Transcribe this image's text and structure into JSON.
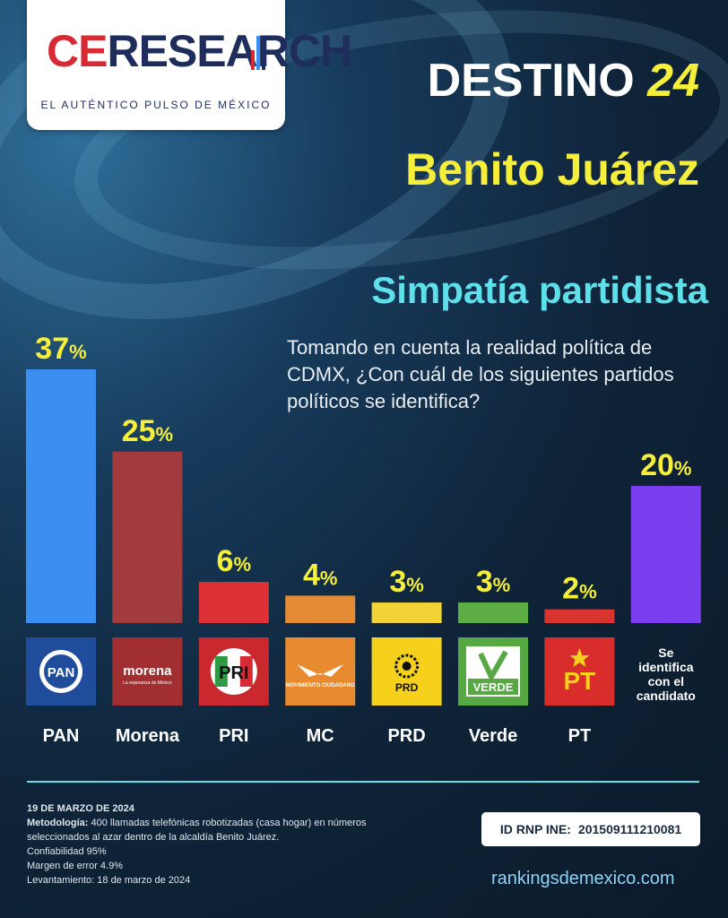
{
  "brand": {
    "logo_ce": "CE",
    "logo_rest": "RESEARCH",
    "tagline": "EL AUTÉNTICO PULSO DE MÉXICO"
  },
  "header": {
    "destino": "DESTINO",
    "year": "24",
    "place": "Benito Juárez"
  },
  "subtitle": "Simpatía partidista",
  "question": "Tomando en cuenta la realidad política de CDMX, ¿Con cuál de los siguientes partidos políticos se identifica?",
  "chart_data": {
    "type": "bar",
    "categories": [
      "PAN",
      "Morena",
      "PRI",
      "MC",
      "PRD",
      "Verde",
      "PT",
      "Se identifica con el candidato"
    ],
    "values": [
      37,
      25,
      6,
      4,
      3,
      3,
      2,
      20
    ],
    "value_suffix": "%",
    "colors": [
      "#3b8ff0",
      "#a23b3d",
      "#dc3237",
      "#e28b34",
      "#f2d235",
      "#5dad45",
      "#da3431",
      "#7c3ff0"
    ],
    "logos": [
      {
        "icon": "pan-logo-icon",
        "text": "PAN",
        "bg": "#1f4d9b"
      },
      {
        "icon": "morena-logo-icon",
        "text": "morena",
        "subtext": "La esperanza de México",
        "bg": "#a12f31"
      },
      {
        "icon": "pri-logo-icon",
        "text": "PRI",
        "bg": "#c9292e"
      },
      {
        "icon": "mc-logo-icon",
        "text": "MOVIMIENTO CIUDADANO",
        "bg": "#e78a30"
      },
      {
        "icon": "prd-logo-icon",
        "text": "PRD",
        "bg": "#f5d11c"
      },
      {
        "icon": "verde-logo-icon",
        "text": "VERDE",
        "bg": "#56a843"
      },
      {
        "icon": "pt-logo-icon",
        "text": "PT",
        "bg": "#d92d2b"
      }
    ],
    "ylim": [
      0,
      37
    ]
  },
  "footer": {
    "date": "19 DE MARZO DE 2024",
    "method_label": "Metodología:",
    "method_text": "400 llamadas telefónicas robotizadas (casa hogar) en números seleccionados al azar dentro de la alcaldía Benito Juárez.",
    "confiabilidad": "Confiabilidad 95%",
    "margen": "Margen de error 4.9%",
    "levantamiento": "Levantamiento: 18 de marzo de 2024",
    "rnp_label": "ID RNP INE:",
    "rnp_value": "201509111210081",
    "website": "rankingsdemexico.com"
  },
  "colors": {
    "accent_cyan": "#5ee0ea",
    "accent_yellow": "#f5ef3a",
    "background": "#0f2439"
  }
}
